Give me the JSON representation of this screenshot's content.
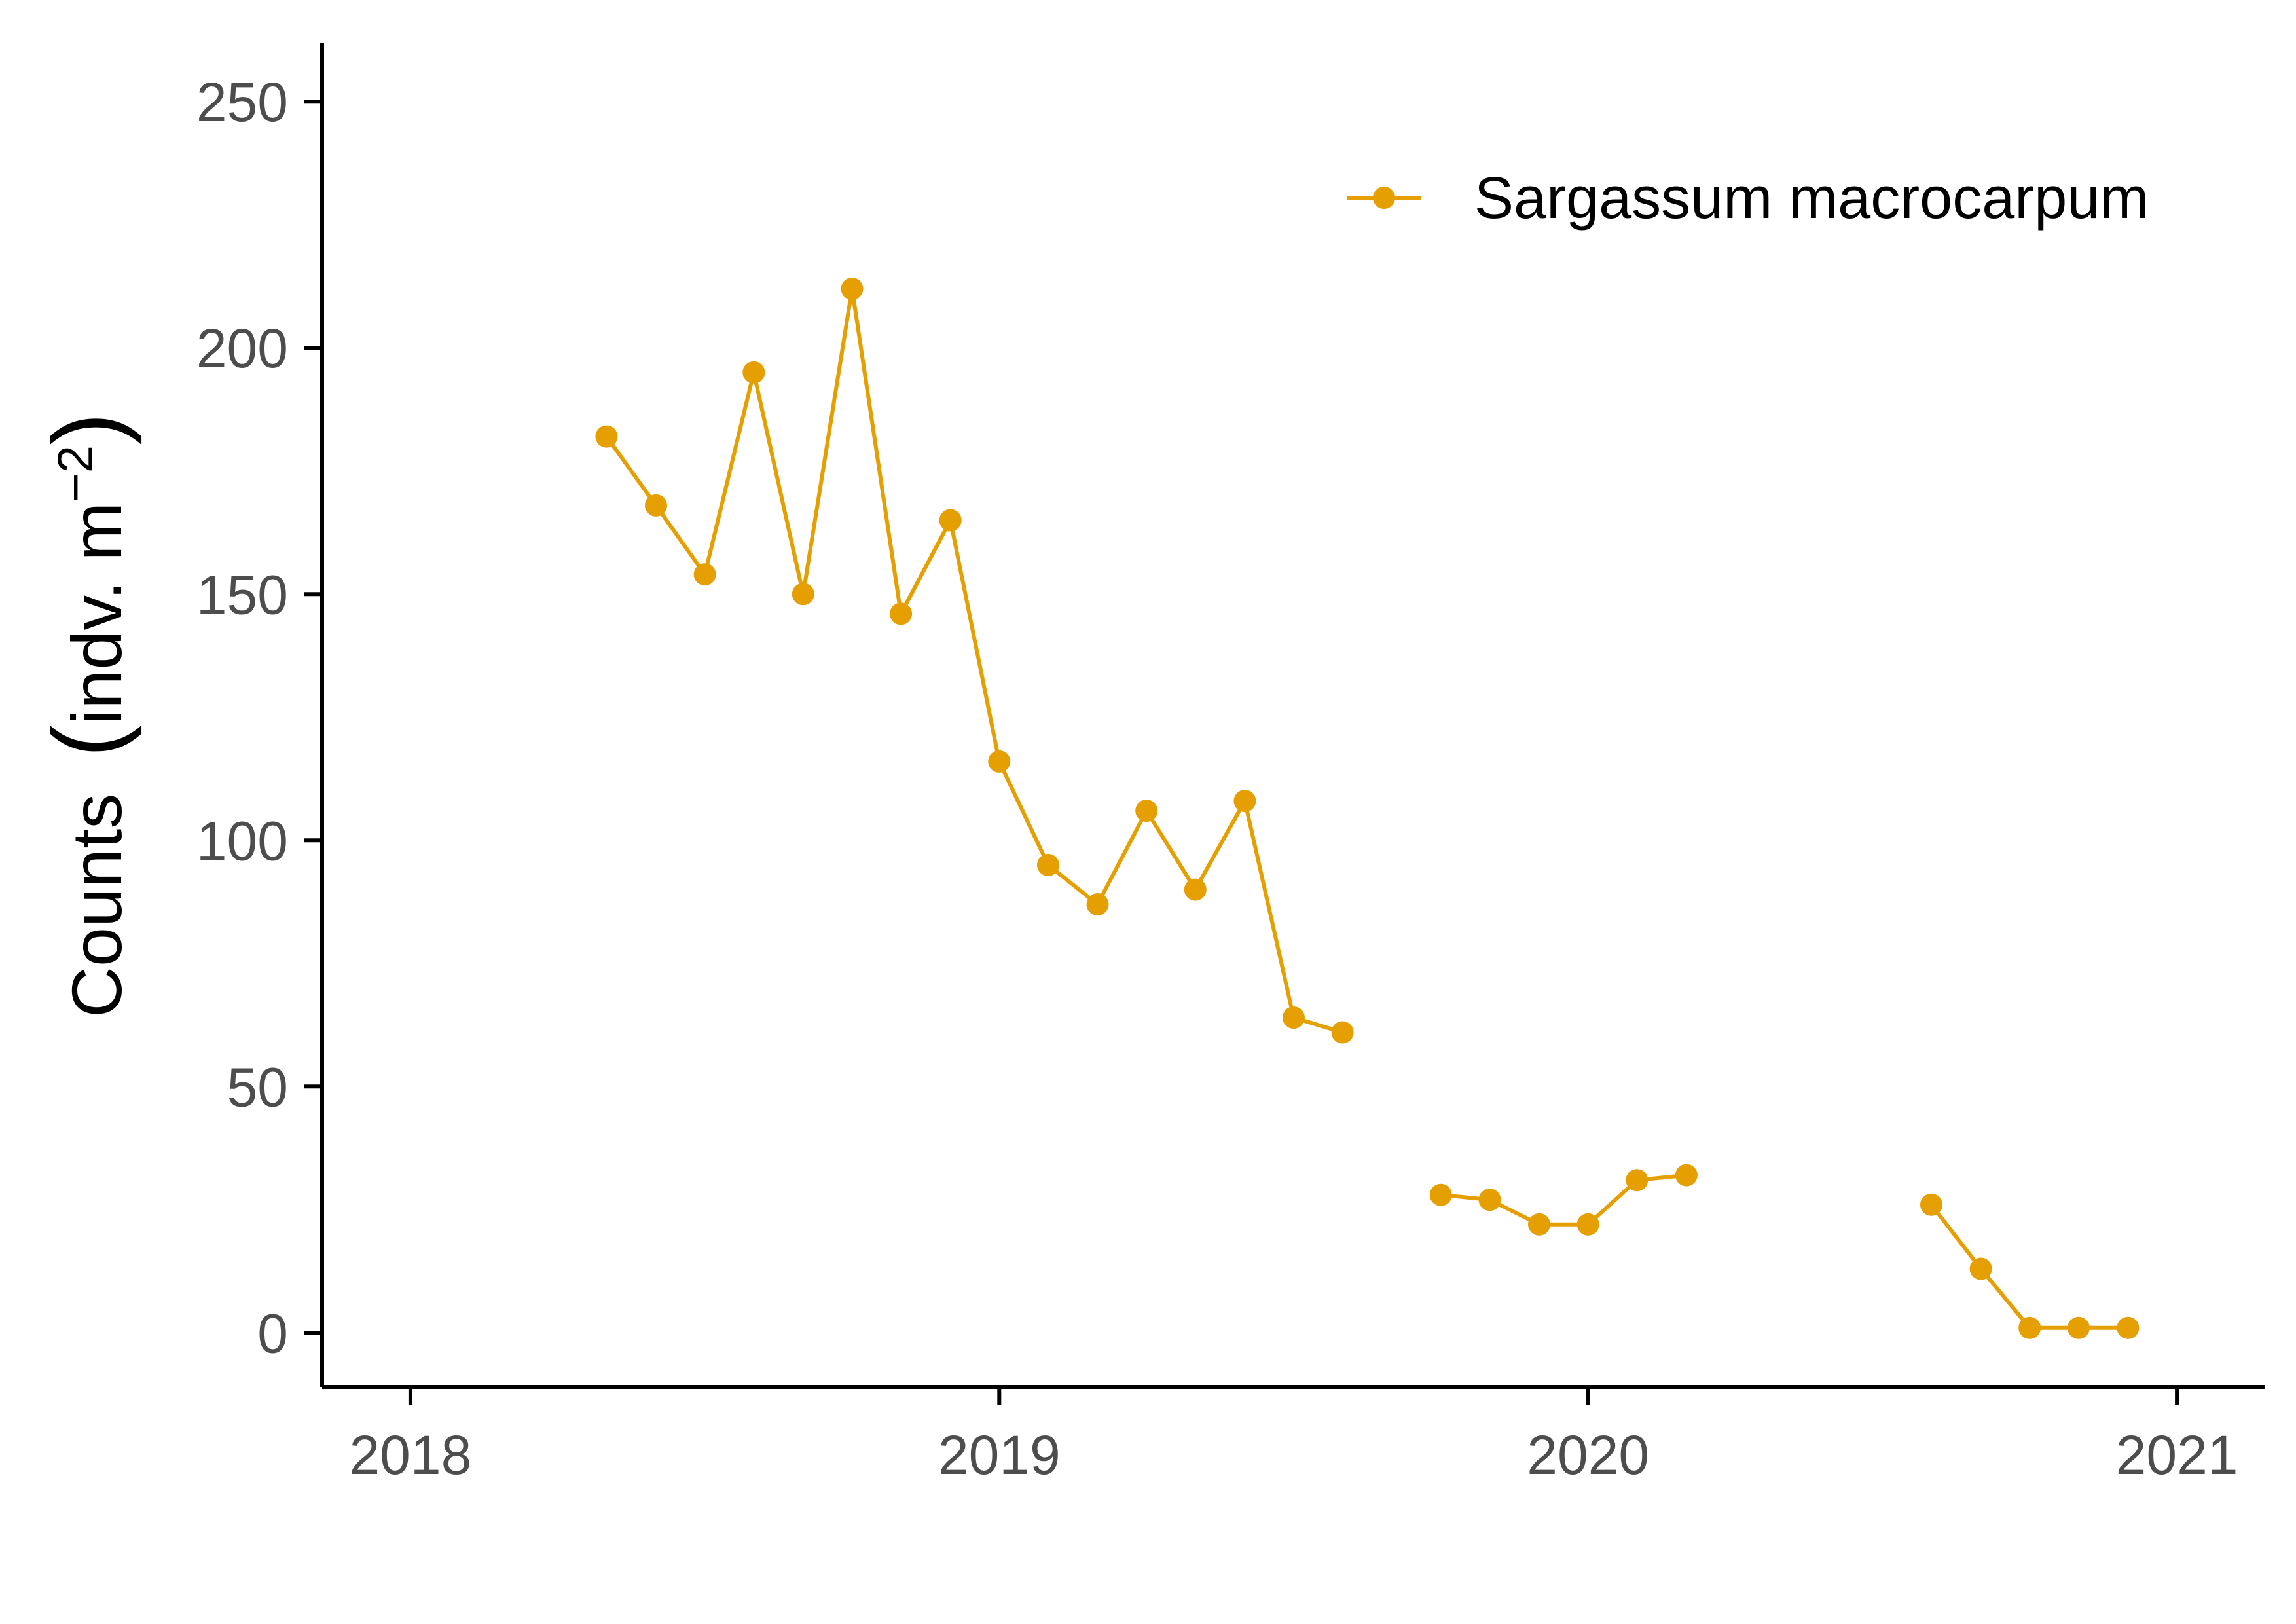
{
  "chart_data": {
    "type": "line",
    "title": "",
    "xlabel": "",
    "ylabel": "Counts",
    "ylabel_unit": "indv. m",
    "ylabel_exponent": "−2",
    "xlim": [
      2017.85,
      2021.15
    ],
    "ylim": [
      -11,
      262
    ],
    "x_ticks": [
      2018,
      2019,
      2020,
      2021
    ],
    "x_tick_labels": [
      "2018",
      "2019",
      "2020",
      "2021"
    ],
    "y_ticks": [
      0,
      50,
      100,
      150,
      200,
      250
    ],
    "y_tick_labels": [
      "0",
      "50",
      "100",
      "150",
      "200",
      "250"
    ],
    "grid": false,
    "legend_position": "top-right",
    "colors": {
      "series": "#E69F00",
      "axis": "#000000"
    },
    "series": [
      {
        "name": "Sargassum macrocarpum",
        "segments": [
          [
            {
              "x": 2018.333,
              "y": 182
            },
            {
              "x": 2018.417,
              "y": 168
            },
            {
              "x": 2018.5,
              "y": 154
            },
            {
              "x": 2018.583,
              "y": 195
            },
            {
              "x": 2018.667,
              "y": 150
            },
            {
              "x": 2018.75,
              "y": 212
            },
            {
              "x": 2018.833,
              "y": 146
            },
            {
              "x": 2018.917,
              "y": 165
            },
            {
              "x": 2019.0,
              "y": 116
            },
            {
              "x": 2019.083,
              "y": 95
            },
            {
              "x": 2019.167,
              "y": 87
            },
            {
              "x": 2019.25,
              "y": 106
            },
            {
              "x": 2019.333,
              "y": 90
            },
            {
              "x": 2019.417,
              "y": 108
            },
            {
              "x": 2019.5,
              "y": 64
            },
            {
              "x": 2019.583,
              "y": 61
            }
          ],
          [
            {
              "x": 2019.75,
              "y": 28
            },
            {
              "x": 2019.833,
              "y": 27
            },
            {
              "x": 2019.917,
              "y": 22
            },
            {
              "x": 2020.0,
              "y": 22
            },
            {
              "x": 2020.083,
              "y": 31
            },
            {
              "x": 2020.167,
              "y": 32
            }
          ],
          [
            {
              "x": 2020.583,
              "y": 26
            },
            {
              "x": 2020.667,
              "y": 13
            },
            {
              "x": 2020.75,
              "y": 1
            },
            {
              "x": 2020.833,
              "y": 1
            },
            {
              "x": 2020.917,
              "y": 1
            }
          ]
        ]
      }
    ]
  }
}
